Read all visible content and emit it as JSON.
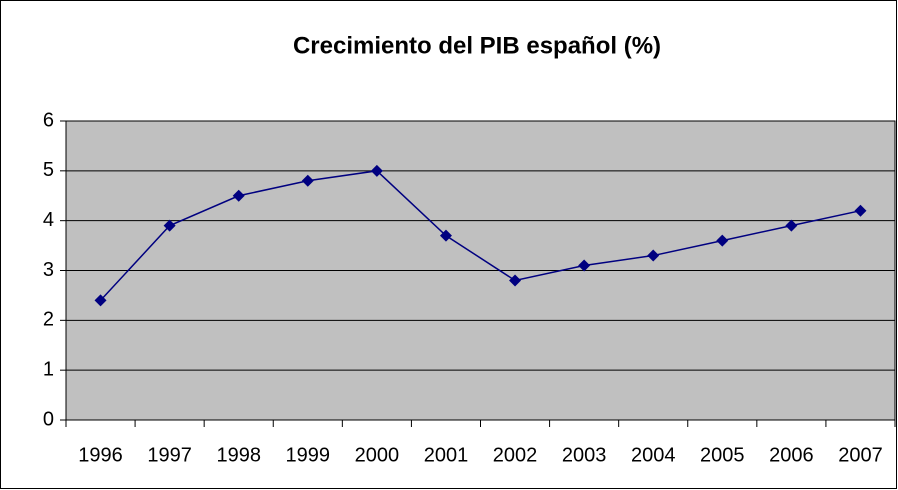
{
  "chart_data": {
    "type": "line",
    "title": "Crecimiento del PIB español (%)",
    "categories": [
      "1996",
      "1997",
      "1998",
      "1999",
      "2000",
      "2001",
      "2002",
      "2003",
      "2004",
      "2005",
      "2006",
      "2007"
    ],
    "values": [
      2.4,
      3.9,
      4.5,
      4.8,
      5.0,
      3.7,
      2.8,
      3.1,
      3.3,
      3.6,
      3.9,
      4.2
    ],
    "color": "#000080",
    "ylim": [
      0,
      6
    ],
    "yticks": [
      0,
      1,
      2,
      3,
      4,
      5,
      6
    ],
    "grid": true
  }
}
